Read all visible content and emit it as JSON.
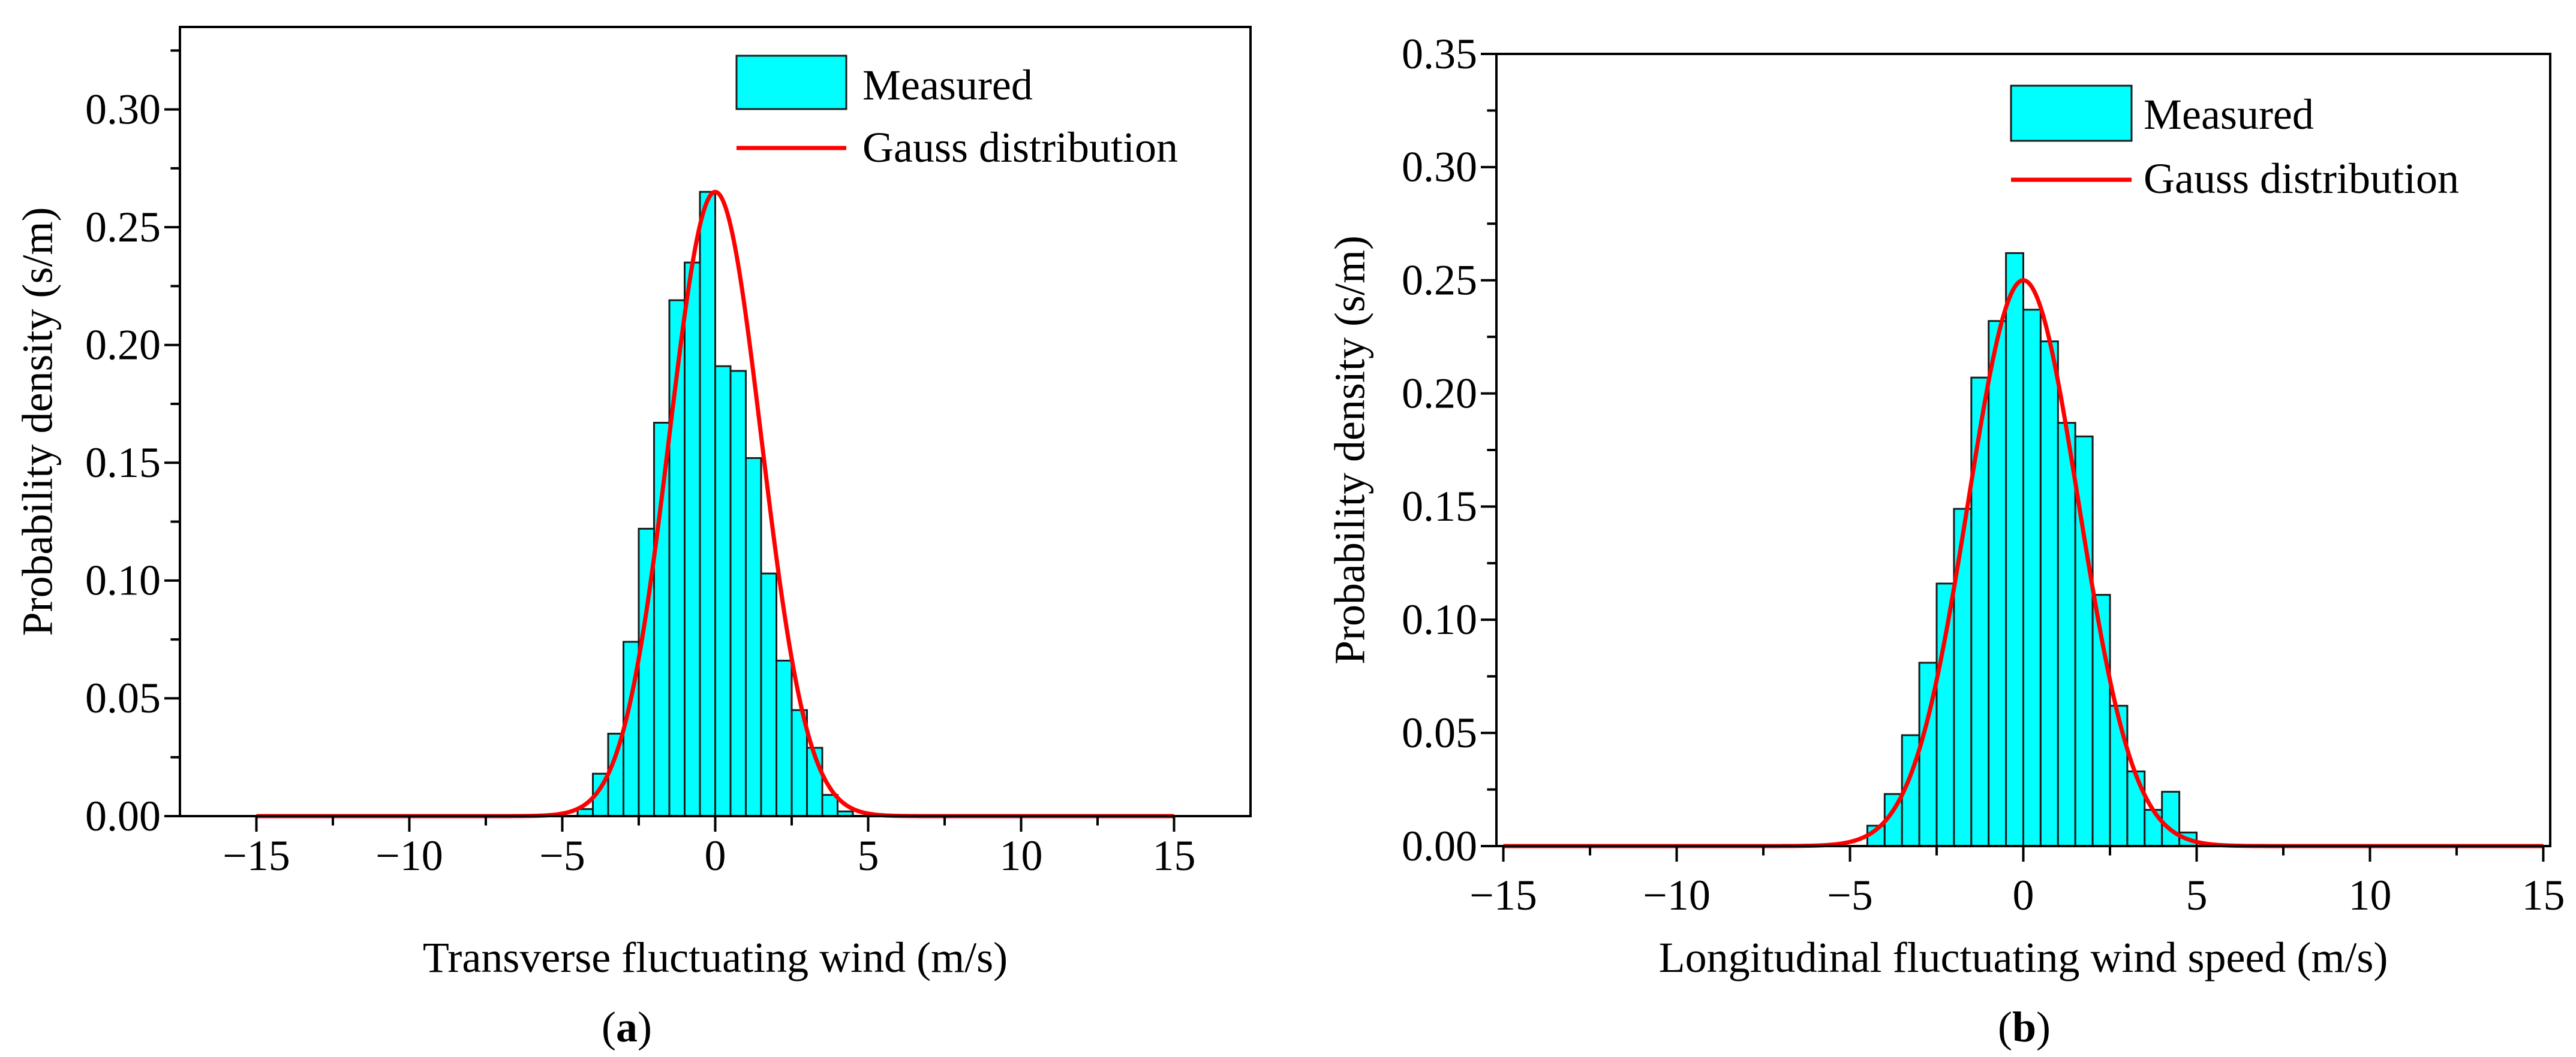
{
  "colors": {
    "bar_fill": "#00ffff",
    "bar_stroke": "#1a1a1a",
    "curve": "#ff0000",
    "axis": "#000000"
  },
  "chart_data": [
    {
      "type": "bar",
      "panel_label": "a",
      "title": "",
      "xlabel": "Transverse fluctuating wind (m/s)",
      "ylabel": "Probability density (s/m)",
      "xlim": [
        -17.5,
        17.5
      ],
      "ylim": [
        0,
        0.335
      ],
      "xticks": [
        -15,
        -10,
        -5,
        0,
        5,
        10,
        15
      ],
      "xtick_labels": [
        "−15",
        "−10",
        "−5",
        "0",
        "5",
        "10",
        "15"
      ],
      "yticks": [
        0,
        0.05,
        0.1,
        0.15,
        0.2,
        0.25,
        0.3
      ],
      "ytick_labels": [
        "0.00",
        "0.05",
        "0.10",
        "0.15",
        "0.20",
        "0.25",
        "0.30"
      ],
      "legend": {
        "position": "top-right",
        "bar_label": "Measured",
        "line_label": "Gauss distribution"
      },
      "bin_width": 0.5,
      "histogram": {
        "bin_centers": [
          -4.25,
          -3.75,
          -3.25,
          -2.75,
          -2.25,
          -1.75,
          -1.25,
          -0.75,
          -0.25,
          0.25,
          0.75,
          1.25,
          1.75,
          2.25,
          2.75,
          3.25,
          3.75,
          4.25
        ],
        "values": [
          0.003,
          0.018,
          0.035,
          0.074,
          0.122,
          0.167,
          0.219,
          0.235,
          0.265,
          0.191,
          0.189,
          0.152,
          0.103,
          0.066,
          0.045,
          0.029,
          0.009,
          0.002
        ]
      },
      "gauss": {
        "mean": 0.0,
        "sd": 1.507,
        "peak": 0.265
      }
    },
    {
      "type": "bar",
      "panel_label": "b",
      "title": "",
      "xlabel": "Longitudinal fluctuating wind speed (m/s)",
      "ylabel": "Probability density (s/m)",
      "xlim": [
        -15.2,
        15.2
      ],
      "ylim": [
        0,
        0.35
      ],
      "xticks": [
        -15,
        -10,
        -5,
        0,
        5,
        10,
        15
      ],
      "xtick_labels": [
        "−15",
        "−10",
        "−5",
        "0",
        "5",
        "10",
        "15"
      ],
      "yticks": [
        0,
        0.05,
        0.1,
        0.15,
        0.2,
        0.25,
        0.3,
        0.35
      ],
      "ytick_labels": [
        "0.00",
        "0.05",
        "0.10",
        "0.15",
        "0.20",
        "0.25",
        "0.30",
        "0.35"
      ],
      "legend": {
        "position": "top-right",
        "bar_label": "Measured",
        "line_label": "Gauss distribution"
      },
      "bin_width": 0.5,
      "histogram": {
        "bin_centers": [
          -4.25,
          -3.75,
          -3.25,
          -2.75,
          -2.25,
          -1.75,
          -1.25,
          -0.75,
          -0.25,
          0.25,
          0.75,
          1.25,
          1.75,
          2.25,
          2.75,
          3.25,
          3.75,
          4.25
        ],
        "values": [
          0.009,
          0.023,
          0.049,
          0.081,
          0.116,
          0.149,
          0.207,
          0.232,
          0.262,
          0.237,
          0.223,
          0.187,
          0.181,
          0.111,
          0.062,
          0.033,
          0.016,
          0.024
        ]
      },
      "extra_bins": {
        "bin_centers": [
          4.75
        ],
        "values": [
          0.006
        ]
      },
      "gauss": {
        "mean": 0.0,
        "sd": 1.596,
        "peak": 0.25
      }
    }
  ]
}
